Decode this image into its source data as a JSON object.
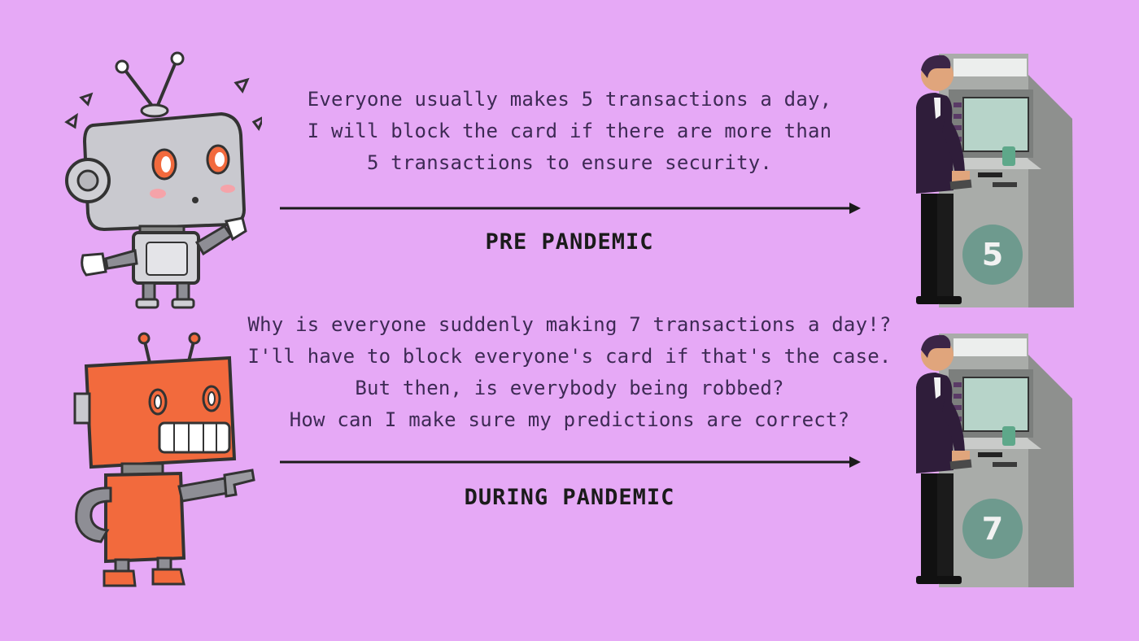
{
  "pre_pandemic": {
    "caption_lines": [
      "Everyone usually makes 5 transactions a day,",
      "I will block the card if there are more than",
      "5 transactions to ensure security."
    ],
    "label": "PRE PANDEMIC",
    "atm_count": "5",
    "robot_icon": "confused-grey-robot",
    "atm_icon": "atm-user"
  },
  "during_pandemic": {
    "caption_lines": [
      "Why is everyone suddenly making 7 transactions a day!?",
      "I'll have to block everyone's card if that's the case.",
      "But then, is everybody being robbed?",
      "How can I make sure my predictions are correct?"
    ],
    "label": "DURING PANDEMIC",
    "atm_count": "7",
    "robot_icon": "orange-robot-pointing",
    "atm_icon": "atm-user"
  },
  "colors": {
    "background": "#e6a9f6",
    "text": "#3e2a55",
    "badge": "#6e9a8e",
    "grey_robot": "#c9c9cf",
    "orange_robot": "#f26a3d",
    "atm": "#a9aca9"
  }
}
